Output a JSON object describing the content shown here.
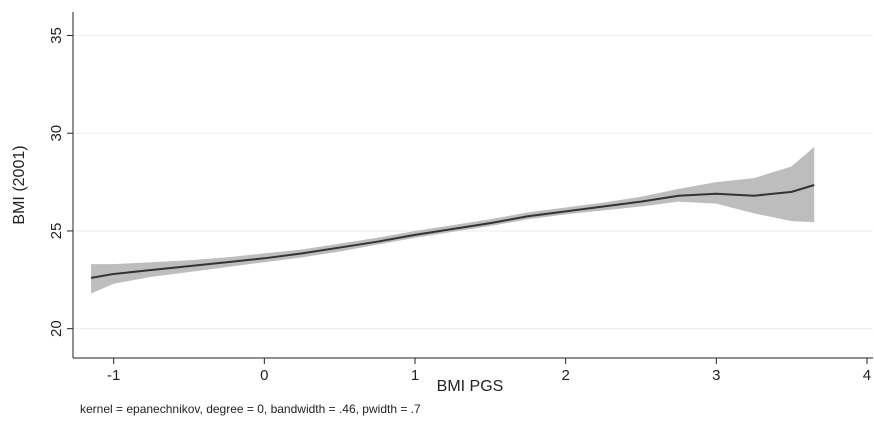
{
  "chart_data": {
    "type": "line",
    "x": [
      -1.15,
      -1,
      -0.75,
      -0.5,
      -0.25,
      0,
      0.25,
      0.5,
      0.75,
      1,
      1.25,
      1.5,
      1.75,
      2,
      2.25,
      2.5,
      2.75,
      3,
      3.25,
      3.5,
      3.65
    ],
    "series": [
      {
        "color": "#333333",
        "band_color": "#bdbdbd",
        "values": [
          22.6,
          22.8,
          23.0,
          23.2,
          23.4,
          23.6,
          23.85,
          24.15,
          24.45,
          24.8,
          25.1,
          25.4,
          25.75,
          26.0,
          26.25,
          26.5,
          26.8,
          26.9,
          26.8,
          27.0,
          27.35
        ],
        "lower": [
          21.8,
          22.3,
          22.65,
          22.9,
          23.15,
          23.4,
          23.65,
          23.95,
          24.3,
          24.65,
          24.95,
          25.25,
          25.6,
          25.85,
          26.05,
          26.25,
          26.5,
          26.4,
          25.9,
          25.5,
          25.45
        ],
        "upper": [
          23.3,
          23.3,
          23.4,
          23.5,
          23.65,
          23.85,
          24.05,
          24.35,
          24.65,
          25.0,
          25.3,
          25.6,
          25.95,
          26.2,
          26.45,
          26.75,
          27.15,
          27.5,
          27.7,
          28.3,
          29.3
        ]
      }
    ],
    "xlim": [
      -1.27,
      4.04
    ],
    "xticks": [
      -1,
      0,
      1,
      2,
      3,
      4
    ],
    "ylim": [
      18.5,
      36.2
    ],
    "yticks": [
      20,
      25,
      30,
      35
    ],
    "grid": true,
    "x_label": "BMI PGS",
    "y_label": "BMI (2001)",
    "note": "kernel = epanechnikov, degree = 0, bandwidth = .46, pwidth = .7"
  }
}
